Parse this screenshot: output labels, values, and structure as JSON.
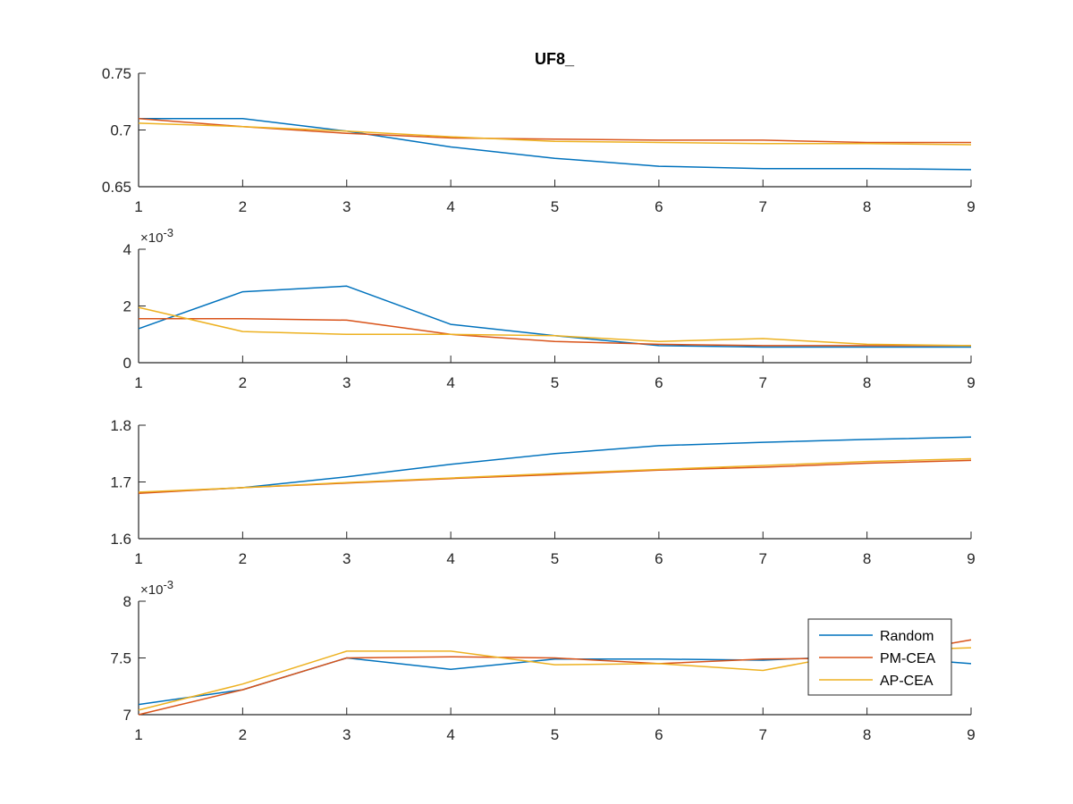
{
  "figure": {
    "title": "UF8_"
  },
  "colors": {
    "axis": "#262626",
    "legend_border": "#262626"
  },
  "chart_data": [
    {
      "type": "line",
      "title": "UF8_",
      "x": [
        1,
        2,
        3,
        4,
        5,
        6,
        7,
        8,
        9
      ],
      "xlim": [
        1,
        9
      ],
      "ylim": [
        0.65,
        0.75
      ],
      "yticks": [
        "0.65",
        "0.7",
        "0.75"
      ],
      "ytick_values": [
        0.65,
        0.7,
        0.75
      ],
      "exponent_label": "",
      "series": [
        {
          "color": "#0072BD",
          "values": [
            0.71,
            0.71,
            0.699,
            0.685,
            0.675,
            0.668,
            0.666,
            0.666,
            0.665
          ]
        },
        {
          "color": "#D95319",
          "values": [
            0.71,
            0.703,
            0.697,
            0.693,
            0.692,
            0.691,
            0.691,
            0.689,
            0.689
          ]
        },
        {
          "color": "#EDB120",
          "values": [
            0.706,
            0.703,
            0.699,
            0.694,
            0.69,
            0.689,
            0.688,
            0.688,
            0.687
          ]
        }
      ]
    },
    {
      "type": "line",
      "x": [
        1,
        2,
        3,
        4,
        5,
        6,
        7,
        8,
        9
      ],
      "xlim": [
        1,
        9
      ],
      "ylim": [
        0,
        4
      ],
      "yticks": [
        "0",
        "2",
        "4"
      ],
      "ytick_values": [
        0,
        2,
        4
      ],
      "exponent_label": "10",
      "exponent_power": "-3",
      "series": [
        {
          "color": "#0072BD",
          "values": [
            1.2,
            2.5,
            2.7,
            1.35,
            0.95,
            0.6,
            0.55,
            0.55,
            0.55
          ]
        },
        {
          "color": "#D95319",
          "values": [
            1.55,
            1.55,
            1.5,
            1.0,
            0.75,
            0.65,
            0.6,
            0.6,
            0.6
          ]
        },
        {
          "color": "#EDB120",
          "values": [
            1.95,
            1.1,
            1.0,
            1.0,
            0.95,
            0.75,
            0.85,
            0.65,
            0.6
          ]
        }
      ]
    },
    {
      "type": "line",
      "x": [
        1,
        2,
        3,
        4,
        5,
        6,
        7,
        8,
        9
      ],
      "xlim": [
        1,
        9
      ],
      "ylim": [
        1.6,
        1.8
      ],
      "yticks": [
        "1.6",
        "1.7",
        "1.8"
      ],
      "ytick_values": [
        1.6,
        1.7,
        1.8
      ],
      "exponent_label": "",
      "series": [
        {
          "color": "#0072BD",
          "values": [
            1.681,
            1.69,
            1.709,
            1.731,
            1.75,
            1.764,
            1.77,
            1.775,
            1.779
          ]
        },
        {
          "color": "#D95319",
          "values": [
            1.68,
            1.69,
            1.698,
            1.706,
            1.713,
            1.721,
            1.726,
            1.733,
            1.738
          ]
        },
        {
          "color": "#EDB120",
          "values": [
            1.682,
            1.69,
            1.699,
            1.707,
            1.715,
            1.722,
            1.729,
            1.736,
            1.741
          ]
        }
      ]
    },
    {
      "type": "line",
      "x": [
        1,
        2,
        3,
        4,
        5,
        6,
        7,
        8,
        9
      ],
      "xlim": [
        1,
        9
      ],
      "ylim": [
        7,
        8
      ],
      "yticks": [
        "7",
        "7.5",
        "8"
      ],
      "ytick_values": [
        7,
        7.5,
        8
      ],
      "exponent_label": "10",
      "exponent_power": "-3",
      "legend": {
        "position": "right",
        "entries": [
          "Random",
          "PM-CEA",
          "AP-CEA"
        ]
      },
      "series": [
        {
          "name": "Random",
          "color": "#0072BD",
          "values": [
            7.09,
            7.22,
            7.5,
            7.4,
            7.49,
            7.49,
            7.48,
            7.52,
            7.45
          ]
        },
        {
          "name": "PM-CEA",
          "color": "#D95319",
          "values": [
            7.0,
            7.22,
            7.5,
            7.51,
            7.5,
            7.45,
            7.49,
            7.5,
            7.66
          ]
        },
        {
          "name": "AP-CEA",
          "color": "#EDB120",
          "values": [
            7.04,
            7.27,
            7.56,
            7.56,
            7.44,
            7.45,
            7.39,
            7.56,
            7.59
          ]
        }
      ]
    }
  ]
}
